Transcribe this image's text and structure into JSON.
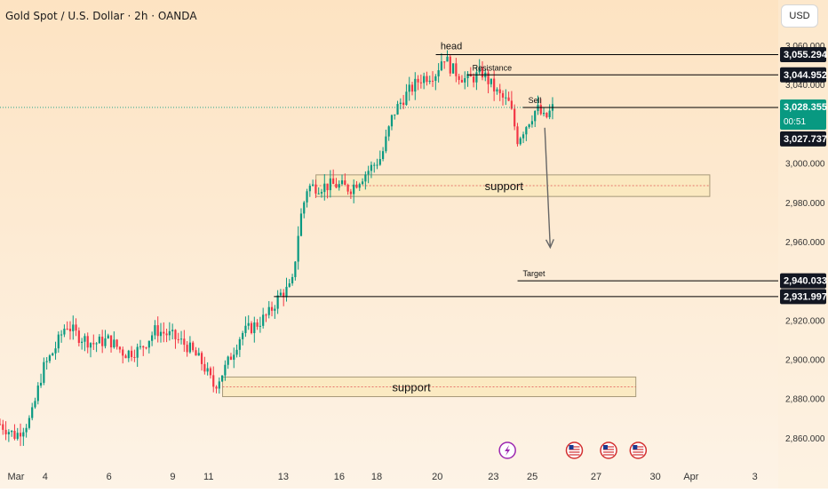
{
  "header": {
    "title": "Gold Spot / U.S. Dollar · 2h · OANDA",
    "currency_button": "USD"
  },
  "colors": {
    "background_top": "#fde3c2",
    "background_bottom": "#fdf3e6",
    "up_candle": "#089981",
    "down_candle": "#f23645",
    "line": "#000000",
    "current_price_badge": "#089981",
    "price_badge": "#131722",
    "zone_fill": "#fae9bd",
    "zone_dash": "#e05050"
  },
  "chart_data": {
    "type": "candlestick",
    "y_axis": {
      "ylim": [
        2850,
        3065
      ],
      "ticks": [
        "2,860.000",
        "2,880.000",
        "2,900.000",
        "2,920.000",
        "2,940.000",
        "2,960.000",
        "2,980.000",
        "3,000.000",
        "3,020.000",
        "3,040.000",
        "3,060.000"
      ],
      "tick_values": [
        2860,
        2880,
        2900,
        2920,
        2940,
        2960,
        2980,
        3000,
        3020,
        3040,
        3060
      ]
    },
    "x_axis": {
      "labels": [
        "Mar",
        "4",
        "6",
        "9",
        "11",
        "13",
        "16",
        "18",
        "20",
        "23",
        "25",
        "27",
        "30",
        "Apr",
        "3"
      ],
      "label_positions": [
        0.0,
        0.058,
        0.14,
        0.222,
        0.268,
        0.364,
        0.436,
        0.484,
        0.562,
        0.634,
        0.684,
        0.766,
        0.842,
        0.888,
        0.97
      ]
    },
    "price_path": [
      [
        0.0,
        2867
      ],
      [
        0.02,
        2861
      ],
      [
        0.04,
        2870
      ],
      [
        0.055,
        2895
      ],
      [
        0.07,
        2905
      ],
      [
        0.085,
        2918
      ],
      [
        0.1,
        2912
      ],
      [
        0.12,
        2908
      ],
      [
        0.14,
        2910
      ],
      [
        0.16,
        2903
      ],
      [
        0.18,
        2905
      ],
      [
        0.2,
        2915
      ],
      [
        0.22,
        2912
      ],
      [
        0.24,
        2907
      ],
      [
        0.26,
        2898
      ],
      [
        0.275,
        2886
      ],
      [
        0.29,
        2896
      ],
      [
        0.31,
        2913
      ],
      [
        0.33,
        2918
      ],
      [
        0.345,
        2923
      ],
      [
        0.36,
        2933
      ],
      [
        0.375,
        2937
      ],
      [
        0.385,
        2970
      ],
      [
        0.395,
        2988
      ],
      [
        0.41,
        2988
      ],
      [
        0.43,
        2989
      ],
      [
        0.45,
        2987
      ],
      [
        0.47,
        2995
      ],
      [
        0.49,
        3003
      ],
      [
        0.505,
        3025
      ],
      [
        0.52,
        3034
      ],
      [
        0.54,
        3043
      ],
      [
        0.56,
        3046
      ],
      [
        0.57,
        3055
      ],
      [
        0.58,
        3048
      ],
      [
        0.6,
        3042
      ],
      [
        0.62,
        3046
      ],
      [
        0.64,
        3035
      ],
      [
        0.655,
        3030
      ],
      [
        0.665,
        3012
      ],
      [
        0.68,
        3022
      ],
      [
        0.69,
        3028
      ],
      [
        0.7,
        3022
      ],
      [
        0.71,
        3028
      ]
    ],
    "horizontal_levels": [
      {
        "value": 3055.294,
        "label": "3,055.294",
        "text": "head"
      },
      {
        "value": 3044.952,
        "label": "3,044.952",
        "text": "Resistance"
      },
      {
        "value": 3028.355,
        "label": "3,028.355",
        "text": "Sell",
        "countdown": "00:51",
        "current": true
      },
      {
        "value": 3027.737,
        "label": "3,027.737"
      },
      {
        "value": 2940.033,
        "label": "2,940.033",
        "text": "Target"
      },
      {
        "value": 2931.997,
        "label": "2,931.997"
      }
    ],
    "zones": [
      {
        "label": "support",
        "y_top": 2994,
        "y_bottom": 2983,
        "x_start": 0.406,
        "x_end": 0.912
      },
      {
        "label": "support",
        "y_top": 2891,
        "y_bottom": 2881,
        "x_start": 0.286,
        "x_end": 0.817
      }
    ],
    "arrow": {
      "from": [
        0.7,
        3018
      ],
      "to": [
        0.707,
        2957
      ]
    },
    "event_icons": [
      "lightning-icon",
      "us-flag-icon",
      "us-flag-icon",
      "us-flag-icon"
    ]
  }
}
